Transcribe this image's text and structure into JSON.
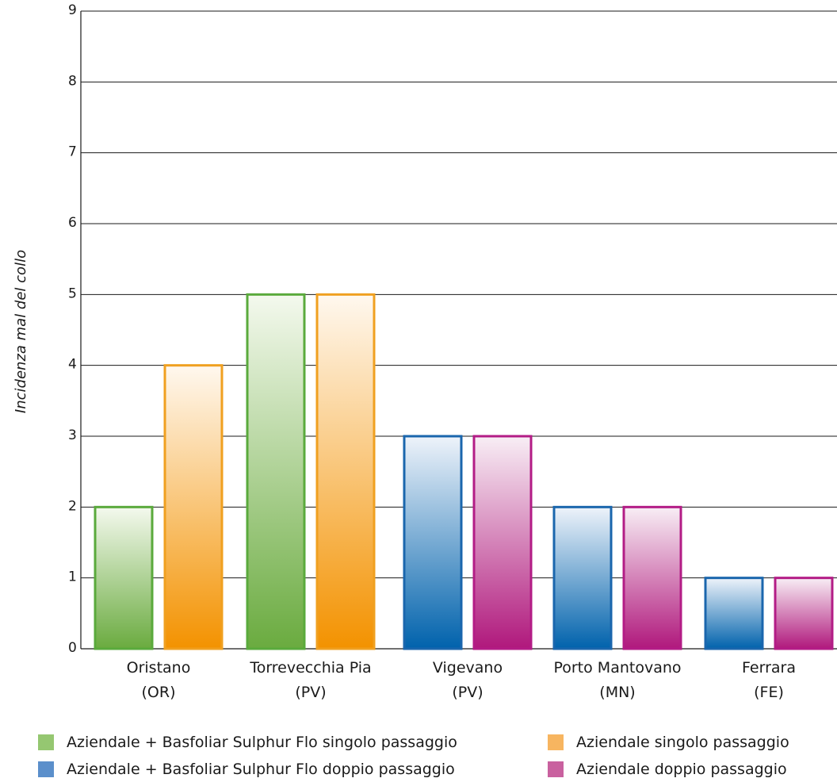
{
  "chart_data": {
    "type": "bar",
    "ylabel": "Incidenza mal del collo",
    "xlabel": "",
    "ylim": [
      0,
      9
    ],
    "yticks": [
      "0",
      "1",
      "2",
      "3",
      "4",
      "5",
      "6",
      "7",
      "8",
      "9"
    ],
    "grid": true,
    "legend_position": "bottom",
    "groups": [
      {
        "label_line1": "Oristano",
        "label_line2": "(OR)",
        "bars": [
          {
            "series": "Aziendale + Basfoliar Sulphur Flo singolo passaggio",
            "value": 2
          },
          {
            "series": "Aziendale singolo passaggio",
            "value": 4
          }
        ]
      },
      {
        "label_line1": "Torrevecchia Pia",
        "label_line2": "(PV)",
        "bars": [
          {
            "series": "Aziendale + Basfoliar Sulphur Flo singolo passaggio",
            "value": 5
          },
          {
            "series": "Aziendale singolo passaggio",
            "value": 5
          }
        ]
      },
      {
        "label_line1": "Vigevano",
        "label_line2": "(PV)",
        "bars": [
          {
            "series": "Aziendale + Basfoliar Sulphur Flo doppio passaggio",
            "value": 3
          },
          {
            "series": "Aziendale doppio passaggio",
            "value": 3
          }
        ]
      },
      {
        "label_line1": "Porto Mantovano",
        "label_line2": "(MN)",
        "bars": [
          {
            "series": "Aziendale + Basfoliar Sulphur Flo doppio passaggio",
            "value": 2
          },
          {
            "series": "Aziendale doppio passaggio",
            "value": 2
          }
        ]
      },
      {
        "label_line1": "Ferrara",
        "label_line2": "(FE)",
        "bars": [
          {
            "series": "Aziendale + Basfoliar Sulphur Flo doppio passaggio",
            "value": 1
          },
          {
            "series": "Aziendale doppio passaggio",
            "value": 1
          }
        ]
      }
    ],
    "series": [
      {
        "name": "Aziendale + Basfoliar Sulphur Flo singolo passaggio",
        "key": "green",
        "color": "#6aab3f",
        "edge": "#5aaa3c",
        "top": "#f4f9ee",
        "swatch": "#95c771"
      },
      {
        "name": "Aziendale singolo passaggio",
        "key": "orange",
        "color": "#f39200",
        "edge": "#f0a020",
        "top": "#fff8ef",
        "swatch": "#f7b560"
      },
      {
        "name": "Aziendale + Basfoliar Sulphur Flo doppio passaggio",
        "key": "blue",
        "color": "#0062ac",
        "edge": "#1a66ad",
        "top": "#eef3fa",
        "swatch": "#5b8fcb"
      },
      {
        "name": "Aziendale doppio passaggio",
        "key": "magenta",
        "color": "#b0187c",
        "edge": "#b31c86",
        "top": "#f8eef5",
        "swatch": "#c9619f"
      }
    ]
  }
}
